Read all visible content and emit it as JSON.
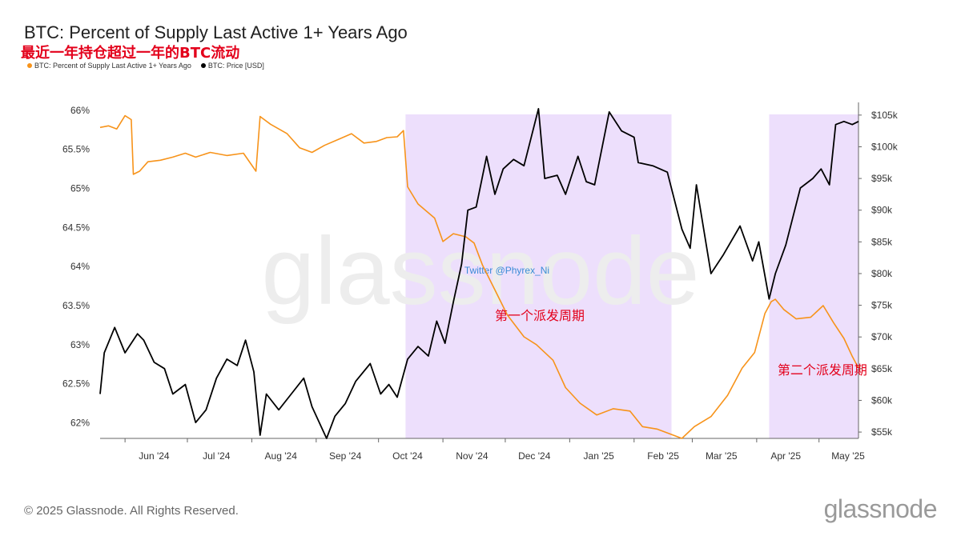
{
  "header": {
    "title": "BTC: Percent of Supply Last Active 1+ Years Ago",
    "subtitle": "最近一年持仓超过一年的BTC流动"
  },
  "footer": {
    "copyright": "© 2025 Glassnode. All Rights Reserved.",
    "logo": "glassnode"
  },
  "watermark": "glassnode",
  "handle": "Twitter @Phyrex_Ni",
  "colors": {
    "supply": "#f7931a",
    "price": "#000000",
    "shade": "#ead9fb",
    "annotation": "#e3001b"
  },
  "chart_data": {
    "type": "line",
    "title": "BTC: Percent of Supply Last Active 1+ Years Ago",
    "legend_position": "top-left",
    "grid": false,
    "x_tick_labels": [
      "Jun '24",
      "Jul '24",
      "Aug '24",
      "Sep '24",
      "Oct '24",
      "Nov '24",
      "Dec '24",
      "Jan '25",
      "Feb '25",
      "Mar '25",
      "Apr '25",
      "May '25"
    ],
    "xlim": [
      "2024-05-20",
      "2025-05-20"
    ],
    "y_left": {
      "tick_labels": [
        "66%",
        "65.5%",
        "65%",
        "64.5%",
        "64%",
        "63.5%",
        "63%",
        "62.5%",
        "62%"
      ],
      "range": [
        61.8,
        66.1
      ]
    },
    "y_right": {
      "tick_labels": [
        "$105k",
        "$100k",
        "$95k",
        "$90k",
        "$85k",
        "$80k",
        "$75k",
        "$70k",
        "$65k",
        "$60k",
        "$55k"
      ],
      "range": [
        54000,
        107000
      ]
    },
    "series": [
      {
        "name": "BTC: Percent of Supply Last Active 1+ Years Ago",
        "axis": "left",
        "color": "#f7931a",
        "points": [
          [
            "2024-05-20",
            65.78
          ],
          [
            "2024-05-24",
            65.8
          ],
          [
            "2024-05-28",
            65.76
          ],
          [
            "2024-06-01",
            65.93
          ],
          [
            "2024-06-04",
            65.88
          ],
          [
            "2024-06-05",
            65.18
          ],
          [
            "2024-06-08",
            65.22
          ],
          [
            "2024-06-12",
            65.34
          ],
          [
            "2024-06-18",
            65.36
          ],
          [
            "2024-06-24",
            65.4
          ],
          [
            "2024-06-30",
            65.45
          ],
          [
            "2024-07-05",
            65.4
          ],
          [
            "2024-07-12",
            65.46
          ],
          [
            "2024-07-20",
            65.42
          ],
          [
            "2024-07-28",
            65.45
          ],
          [
            "2024-08-03",
            65.22
          ],
          [
            "2024-08-05",
            65.92
          ],
          [
            "2024-08-10",
            65.82
          ],
          [
            "2024-08-18",
            65.7
          ],
          [
            "2024-08-24",
            65.52
          ],
          [
            "2024-08-30",
            65.46
          ],
          [
            "2024-09-05",
            65.55
          ],
          [
            "2024-09-12",
            65.63
          ],
          [
            "2024-09-18",
            65.7
          ],
          [
            "2024-09-24",
            65.58
          ],
          [
            "2024-09-30",
            65.6
          ],
          [
            "2024-10-05",
            65.65
          ],
          [
            "2024-10-10",
            65.66
          ],
          [
            "2024-10-13",
            65.74
          ],
          [
            "2024-10-15",
            65.02
          ],
          [
            "2024-10-20",
            64.8
          ],
          [
            "2024-10-28",
            64.62
          ],
          [
            "2024-11-01",
            64.32
          ],
          [
            "2024-11-06",
            64.42
          ],
          [
            "2024-11-12",
            64.38
          ],
          [
            "2024-11-16",
            64.3
          ],
          [
            "2024-11-20",
            64.02
          ],
          [
            "2024-11-26",
            63.7
          ],
          [
            "2024-12-02",
            63.38
          ],
          [
            "2024-12-10",
            63.1
          ],
          [
            "2024-12-16",
            63.0
          ],
          [
            "2024-12-24",
            62.8
          ],
          [
            "2024-12-30",
            62.45
          ],
          [
            "2025-01-06",
            62.25
          ],
          [
            "2025-01-14",
            62.1
          ],
          [
            "2025-01-22",
            62.18
          ],
          [
            "2025-01-30",
            62.15
          ],
          [
            "2025-02-05",
            61.95
          ],
          [
            "2025-02-12",
            61.92
          ],
          [
            "2025-02-18",
            61.86
          ],
          [
            "2025-02-24",
            61.8
          ],
          [
            "2025-03-02",
            61.95
          ],
          [
            "2025-03-10",
            62.08
          ],
          [
            "2025-03-18",
            62.35
          ],
          [
            "2025-03-25",
            62.7
          ],
          [
            "2025-03-31",
            62.9
          ],
          [
            "2025-04-05",
            63.4
          ],
          [
            "2025-04-08",
            63.55
          ],
          [
            "2025-04-10",
            63.58
          ],
          [
            "2025-04-14",
            63.45
          ],
          [
            "2025-04-20",
            63.33
          ],
          [
            "2025-04-27",
            63.35
          ],
          [
            "2025-05-03",
            63.5
          ],
          [
            "2025-05-08",
            63.28
          ],
          [
            "2025-05-13",
            63.08
          ],
          [
            "2025-05-17",
            62.85
          ],
          [
            "2025-05-20",
            62.7
          ]
        ]
      },
      {
        "name": "BTC: Price [USD]",
        "axis": "right",
        "color": "#000000",
        "points": [
          [
            "2024-05-20",
            61000
          ],
          [
            "2024-05-22",
            67500
          ],
          [
            "2024-05-27",
            71500
          ],
          [
            "2024-06-01",
            67500
          ],
          [
            "2024-06-07",
            70500
          ],
          [
            "2024-06-10",
            69500
          ],
          [
            "2024-06-15",
            66000
          ],
          [
            "2024-06-20",
            65000
          ],
          [
            "2024-06-24",
            61000
          ],
          [
            "2024-06-30",
            62500
          ],
          [
            "2024-07-05",
            56500
          ],
          [
            "2024-07-10",
            58500
          ],
          [
            "2024-07-15",
            63500
          ],
          [
            "2024-07-20",
            66500
          ],
          [
            "2024-07-25",
            65500
          ],
          [
            "2024-07-29",
            69500
          ],
          [
            "2024-08-02",
            64500
          ],
          [
            "2024-08-05",
            54500
          ],
          [
            "2024-08-08",
            61000
          ],
          [
            "2024-08-14",
            58500
          ],
          [
            "2024-08-20",
            61000
          ],
          [
            "2024-08-26",
            63500
          ],
          [
            "2024-08-30",
            59000
          ],
          [
            "2024-09-06",
            54000
          ],
          [
            "2024-09-10",
            57500
          ],
          [
            "2024-09-15",
            59500
          ],
          [
            "2024-09-20",
            63000
          ],
          [
            "2024-09-27",
            65800
          ],
          [
            "2024-10-02",
            61000
          ],
          [
            "2024-10-06",
            62500
          ],
          [
            "2024-10-10",
            60500
          ],
          [
            "2024-10-15",
            66500
          ],
          [
            "2024-10-20",
            68500
          ],
          [
            "2024-10-25",
            67000
          ],
          [
            "2024-10-29",
            72500
          ],
          [
            "2024-11-02",
            69000
          ],
          [
            "2024-11-06",
            75500
          ],
          [
            "2024-11-10",
            81500
          ],
          [
            "2024-11-13",
            90000
          ],
          [
            "2024-11-17",
            90500
          ],
          [
            "2024-11-22",
            98500
          ],
          [
            "2024-11-26",
            92500
          ],
          [
            "2024-11-30",
            96500
          ],
          [
            "2024-12-05",
            98000
          ],
          [
            "2024-12-10",
            97000
          ],
          [
            "2024-12-17",
            106000
          ],
          [
            "2024-12-20",
            95000
          ],
          [
            "2024-12-26",
            95500
          ],
          [
            "2024-12-30",
            92500
          ],
          [
            "2025-01-05",
            98500
          ],
          [
            "2025-01-09",
            94500
          ],
          [
            "2025-01-13",
            94000
          ],
          [
            "2025-01-20",
            105500
          ],
          [
            "2025-01-26",
            102500
          ],
          [
            "2025-02-01",
            101500
          ],
          [
            "2025-02-03",
            97500
          ],
          [
            "2025-02-10",
            97000
          ],
          [
            "2025-02-17",
            96000
          ],
          [
            "2025-02-24",
            87000
          ],
          [
            "2025-02-28",
            84000
          ],
          [
            "2025-03-03",
            94000
          ],
          [
            "2025-03-10",
            80000
          ],
          [
            "2025-03-16",
            83000
          ],
          [
            "2025-03-24",
            87500
          ],
          [
            "2025-03-30",
            82000
          ],
          [
            "2025-04-02",
            85000
          ],
          [
            "2025-04-07",
            76000
          ],
          [
            "2025-04-10",
            80000
          ],
          [
            "2025-04-15",
            84500
          ],
          [
            "2025-04-22",
            93500
          ],
          [
            "2025-04-28",
            95000
          ],
          [
            "2025-05-02",
            96500
          ],
          [
            "2025-05-06",
            94000
          ],
          [
            "2025-05-09",
            103500
          ],
          [
            "2025-05-13",
            104000
          ],
          [
            "2025-05-17",
            103500
          ],
          [
            "2025-05-20",
            104000
          ]
        ]
      }
    ],
    "shaded_ranges": [
      {
        "start": "2024-10-14",
        "end": "2025-02-19"
      },
      {
        "start": "2025-04-07",
        "end": "2025-05-20"
      }
    ],
    "annotations": [
      {
        "text": "第一个派发周期",
        "x": "2024-11-26"
      },
      {
        "text": "第二个派发周期",
        "x": "2025-04-11"
      }
    ]
  }
}
